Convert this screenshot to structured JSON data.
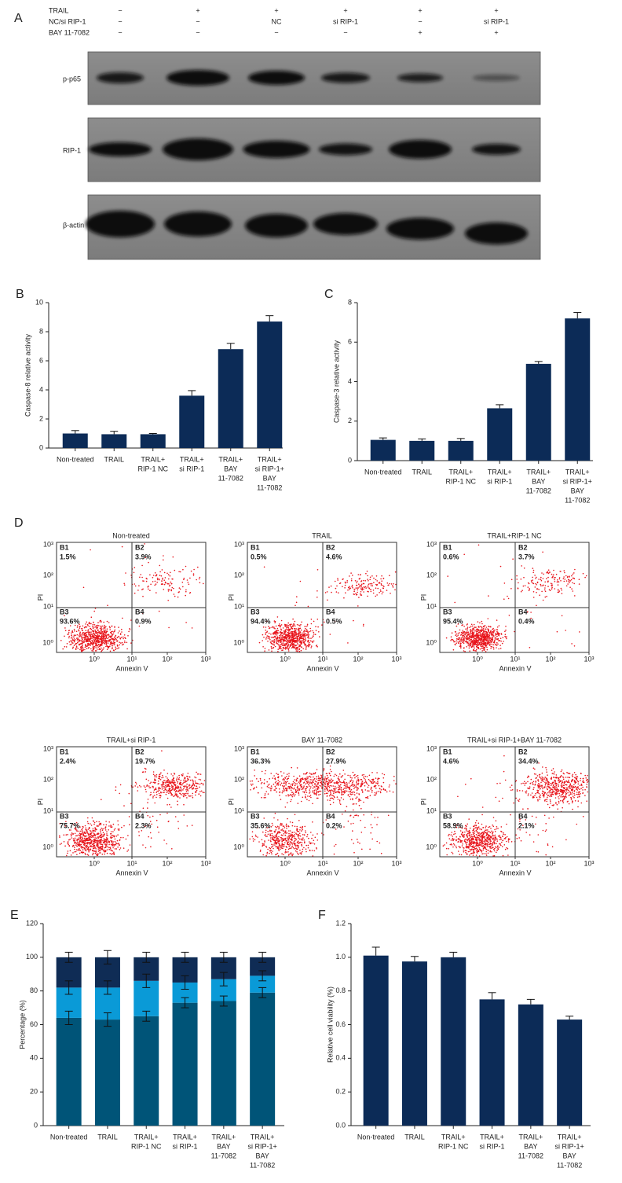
{
  "blot": {
    "label": "A",
    "conditions": [
      {
        "name": "TRAIL",
        "values": [
          "−",
          "+",
          "+",
          "+",
          "+",
          "+"
        ]
      },
      {
        "name": "NC/si RIP-1",
        "values": [
          "−",
          "−",
          "NC",
          "si RIP-1",
          "−",
          "si RIP-1"
        ]
      },
      {
        "name": "BAY 11-7082",
        "values": [
          "−",
          "−",
          "−",
          "−",
          "+",
          "+"
        ]
      }
    ],
    "rows": [
      "p-p65",
      "RIP-1",
      "β-actin"
    ]
  },
  "chart_data": [
    {
      "type": "bar",
      "label": "B",
      "ylabel": "Caspase-8 relative activity",
      "categories": [
        [
          "Non-treated"
        ],
        [
          "TRAIL"
        ],
        [
          "TRAIL+",
          "RIP-1 NC"
        ],
        [
          "TRAIL+",
          "si RIP-1"
        ],
        [
          "TRAIL+",
          "BAY",
          "11-7082"
        ],
        [
          "TRAIL+",
          "si RIP-1+",
          "BAY",
          "11-7082"
        ]
      ],
      "values": [
        1.0,
        0.95,
        0.95,
        3.6,
        6.8,
        8.7
      ],
      "errors": [
        0.2,
        0.2,
        0.05,
        0.35,
        0.4,
        0.4
      ],
      "color": "#0c2b57",
      "ylim": [
        0,
        10
      ],
      "yticks": [
        0,
        2,
        4,
        6,
        8,
        10
      ]
    },
    {
      "type": "bar",
      "label": "C",
      "ylabel": "Caspase-3 relative activity",
      "categories": [
        [
          "Non-treated"
        ],
        [
          "TRAIL"
        ],
        [
          "TRAIL+",
          "RIP-1 NC"
        ],
        [
          "TRAIL+",
          "si RIP-1"
        ],
        [
          "TRAIL+",
          "BAY",
          "11-7082"
        ],
        [
          "TRAIL+",
          "si RIP-1+",
          "BAY",
          "11-7082"
        ]
      ],
      "values": [
        1.05,
        1.0,
        1.0,
        2.65,
        4.9,
        7.2
      ],
      "errors": [
        0.1,
        0.1,
        0.12,
        0.18,
        0.12,
        0.3
      ],
      "color": "#0c2b57",
      "ylim": [
        0,
        8
      ],
      "yticks": [
        0,
        2,
        4,
        6,
        8
      ]
    },
    {
      "type": "stacked_bar",
      "label": "E",
      "ylabel": "Percentage (%)",
      "categories": [
        [
          "Non-treated"
        ],
        [
          "TRAIL"
        ],
        [
          "TRAIL+",
          "RIP-1 NC"
        ],
        [
          "TRAIL+",
          "si RIP-1"
        ],
        [
          "TRAIL+",
          "BAY",
          "11-7082"
        ],
        [
          "TRAIL+",
          "si RIP-1+",
          "BAY",
          "11-7082"
        ]
      ],
      "series": [
        {
          "color": "#005478",
          "values": [
            64,
            63,
            65,
            73,
            74,
            79
          ],
          "errors": [
            4,
            4,
            3,
            3,
            3,
            3
          ]
        },
        {
          "color": "#0a9ad7",
          "values": [
            18,
            19,
            21,
            12,
            13,
            10
          ],
          "errors": [
            4,
            4,
            4,
            4,
            4,
            3
          ]
        },
        {
          "color": "#0f2c55",
          "values": [
            18,
            18,
            14,
            15,
            13,
            11
          ],
          "errors": [
            3,
            4,
            3,
            3,
            3,
            3
          ]
        }
      ],
      "ylim": [
        0,
        120
      ],
      "yticks": [
        0,
        20,
        40,
        60,
        80,
        100,
        120
      ]
    },
    {
      "type": "bar",
      "label": "F",
      "ylabel": "Relative cell viability (%)",
      "categories": [
        [
          "Non-treated"
        ],
        [
          "TRAIL"
        ],
        [
          "TRAIL+",
          "RIP-1 NC"
        ],
        [
          "TRAIL+",
          "si RIP-1"
        ],
        [
          "TRAIL+",
          "BAY",
          "11-7082"
        ],
        [
          "TRAIL+",
          "si RIP-1+",
          "BAY",
          "11-7082"
        ]
      ],
      "values": [
        1.01,
        0.975,
        1.0,
        0.75,
        0.72,
        0.63
      ],
      "errors": [
        0.05,
        0.03,
        0.03,
        0.04,
        0.03,
        0.02
      ],
      "color": "#0c2b57",
      "ylim": [
        0,
        1.2
      ],
      "yticks": [
        {
          "value": 0,
          "label": "0.0"
        },
        0.2,
        0.4,
        0.6,
        0.8,
        {
          "value": 1,
          "label": "1.0"
        },
        1.2
      ]
    }
  ],
  "flow": {
    "label": "D",
    "xlabel": "Annexin V",
    "ylabel": "PI",
    "ticks": [
      "10⁰",
      "10¹",
      "10²",
      "10³"
    ],
    "plots": [
      {
        "title": "Non-treated",
        "quadrants": [
          {
            "name": "B1",
            "value": "1.5%"
          },
          {
            "name": "B2",
            "value": "3.9%"
          },
          {
            "name": "B3",
            "value": "93.6%"
          },
          {
            "name": "B4",
            "value": "0.9%"
          }
        ]
      },
      {
        "title": "TRAIL",
        "quadrants": [
          {
            "name": "B1",
            "value": "0.5%"
          },
          {
            "name": "B2",
            "value": "4.6%"
          },
          {
            "name": "B3",
            "value": "94.4%"
          },
          {
            "name": "B4",
            "value": "0.5%"
          }
        ]
      },
      {
        "title": "TRAIL+RIP-1 NC",
        "quadrants": [
          {
            "name": "B1",
            "value": "0.6%"
          },
          {
            "name": "B2",
            "value": "3.7%"
          },
          {
            "name": "B3",
            "value": "95.4%"
          },
          {
            "name": "B4",
            "value": "0.4%"
          }
        ]
      },
      {
        "title": "TRAIL+si RIP-1",
        "quadrants": [
          {
            "name": "B1",
            "value": "2.4%"
          },
          {
            "name": "B2",
            "value": "19.7%"
          },
          {
            "name": "B3",
            "value": "75.7%"
          },
          {
            "name": "B4",
            "value": "2.3%"
          }
        ]
      },
      {
        "title": "BAY 11-7082",
        "quadrants": [
          {
            "name": "B1",
            "value": "36.3%"
          },
          {
            "name": "B2",
            "value": "27.9%"
          },
          {
            "name": "B3",
            "value": "35.6%"
          },
          {
            "name": "B4",
            "value": "0.2%"
          }
        ]
      },
      {
        "title": "TRAIL+si RIP-1+BAY 11-7082",
        "quadrants": [
          {
            "name": "B1",
            "value": "4.6%"
          },
          {
            "name": "B2",
            "value": "34.4%"
          },
          {
            "name": "B3",
            "value": "58.9%"
          },
          {
            "name": "B4",
            "value": "2.1%"
          }
        ]
      }
    ]
  }
}
